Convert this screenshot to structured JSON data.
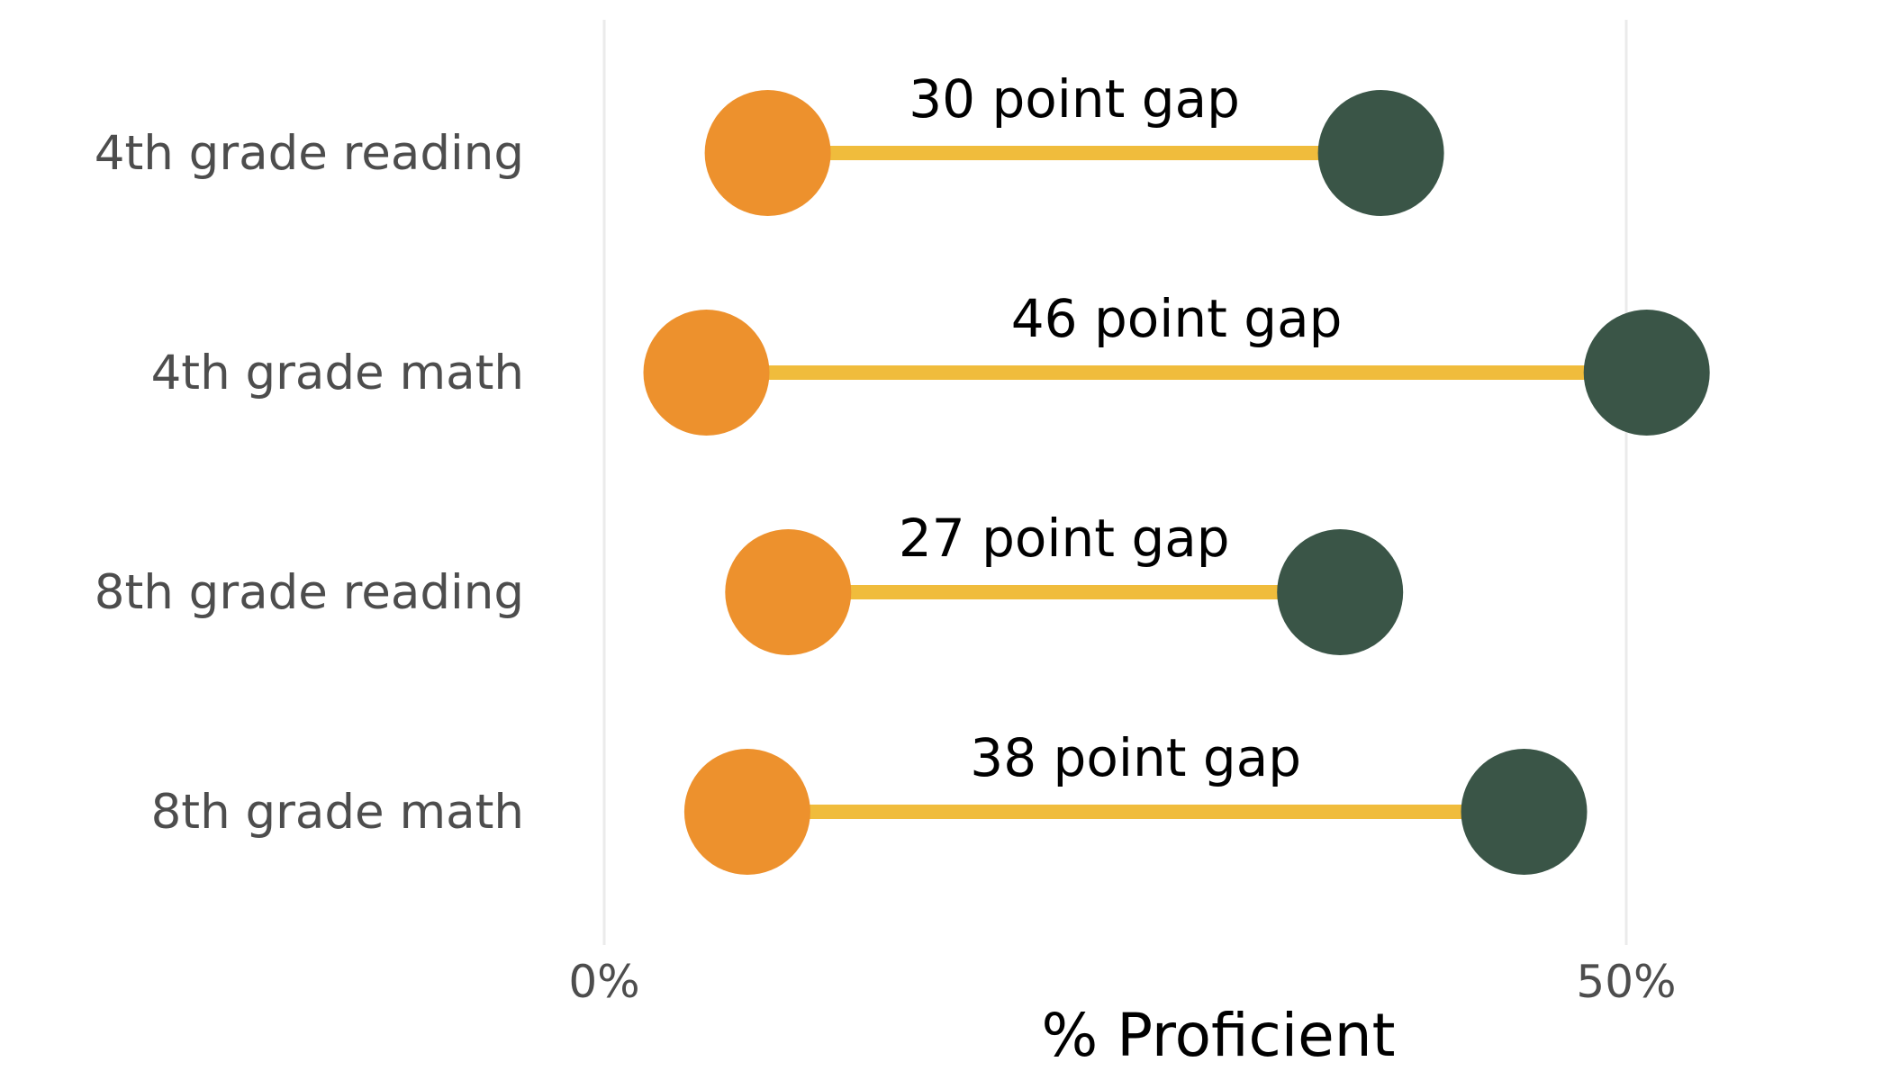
{
  "chart_data": {
    "type": "dumbbell",
    "categories": [
      "4th grade reading",
      "4th grade math",
      "8th grade reading",
      "8th grade math"
    ],
    "series": [
      {
        "values": [
          8,
          5,
          9,
          7
        ]
      },
      {
        "values": [
          38,
          51,
          36,
          45
        ]
      }
    ],
    "gap_labels": [
      "30 point gap",
      "46 point gap",
      "27 point gap",
      "38 point gap"
    ],
    "xlabel": "% Proficient",
    "ylabel": "",
    "x_ticks": [
      0,
      50
    ],
    "x_tick_labels": [
      "0%",
      "50%"
    ],
    "xlim": [
      0,
      60
    ],
    "grid": "vertical at ticks",
    "legend": "none",
    "colors": {
      "low": "#ED912D",
      "high": "#3A5547",
      "connector": "#F0BC3C",
      "grid": "#EBEBEB",
      "label_text": "#4D4D4D",
      "gap_text": "#000000"
    }
  }
}
